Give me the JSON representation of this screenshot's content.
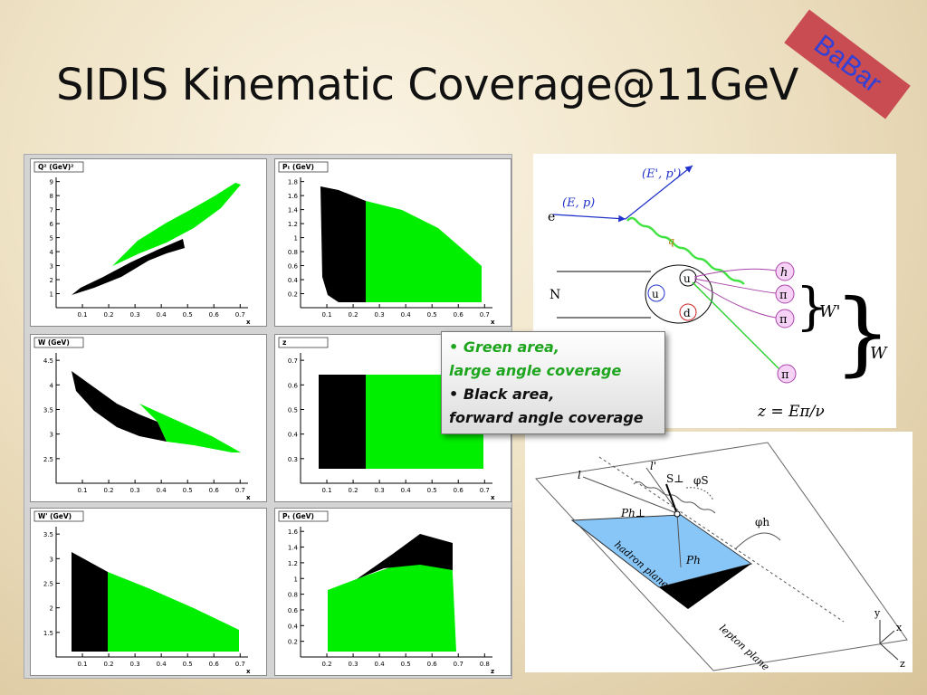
{
  "title": "SIDIS Kinematic Coverage@11GeV",
  "badge": "BaBar",
  "legend": {
    "green_line1": "Green area,",
    "green_line2": "large angle coverage",
    "black_line1": "Black area,",
    "black_line2": "forward angle coverage",
    "bullet": "•"
  },
  "colors": {
    "green": "#00ee00",
    "black": "#000000",
    "badge": "#c94c52"
  },
  "plots": [
    {
      "ylabel": "Q² (GeV)²",
      "xlabel": "x",
      "yticks": [
        "1",
        "2",
        "3",
        "4",
        "5",
        "6",
        "7",
        "8",
        "9"
      ],
      "xticks": [
        "0.1",
        "0.2",
        "0.3",
        "0.4",
        "0.5",
        "0.6",
        "0.7"
      ]
    },
    {
      "ylabel": "Pₜ (GeV)",
      "xlabel": "x",
      "yticks": [
        "0.2",
        "0.4",
        "0.6",
        "0.8",
        "1",
        "1.2",
        "1.4",
        "1.6",
        "1.8"
      ],
      "xticks": [
        "0.1",
        "0.2",
        "0.3",
        "0.4",
        "0.5",
        "0.6",
        "0.7"
      ]
    },
    {
      "ylabel": "W (GeV)",
      "xlabel": "x",
      "yticks": [
        "2.5",
        "3",
        "3.5",
        "4",
        "4.5"
      ],
      "xticks": [
        "0.1",
        "0.2",
        "0.3",
        "0.4",
        "0.5",
        "0.6",
        "0.7"
      ]
    },
    {
      "ylabel": "z",
      "xlabel": "x",
      "yticks": [
        "0.3",
        "0.4",
        "0.5",
        "0.6",
        "0.7"
      ],
      "xticks": [
        "0.1",
        "0.2",
        "0.3",
        "0.4",
        "0.5",
        "0.6",
        "0.7"
      ]
    },
    {
      "ylabel": "W' (GeV)",
      "xlabel": "x",
      "yticks": [
        "1.5",
        "2",
        "2.5",
        "3",
        "3.5"
      ],
      "xticks": [
        "0.1",
        "0.2",
        "0.3",
        "0.4",
        "0.5",
        "0.6",
        "0.7"
      ]
    },
    {
      "ylabel": "Pₜ (GeV)",
      "xlabel": "z",
      "yticks": [
        "0.2",
        "0.4",
        "0.6",
        "0.8",
        "1",
        "1.2",
        "1.4",
        "1.6"
      ],
      "xticks": [
        "0.2",
        "0.3",
        "0.4",
        "0.5",
        "0.6",
        "0.7",
        "0.8"
      ]
    }
  ],
  "feynman": {
    "beam_in": "(E, p)",
    "beam_out": "(E', p')",
    "electron": "e",
    "nucleon": "N",
    "photon": "q",
    "quark_u_struck": "u",
    "quark_u": "u",
    "quark_d": "d",
    "hadron_h": "h",
    "pion1": "π",
    "pion2": "π",
    "pion3": "π",
    "wprime": "W'",
    "w": "W",
    "formula": "z = Eπ/ν"
  },
  "planes": {
    "l": "l",
    "lprime": "l'",
    "s_perp": "S⊥",
    "phi_s": "φS",
    "ph_perp": "Ph⊥",
    "phi_h": "φh",
    "ph": "Ph",
    "hadron_plane": "hadron plane",
    "lepton_plane": "lepton plane",
    "axis_y": "y",
    "axis_x": "x",
    "axis_z": "z"
  }
}
